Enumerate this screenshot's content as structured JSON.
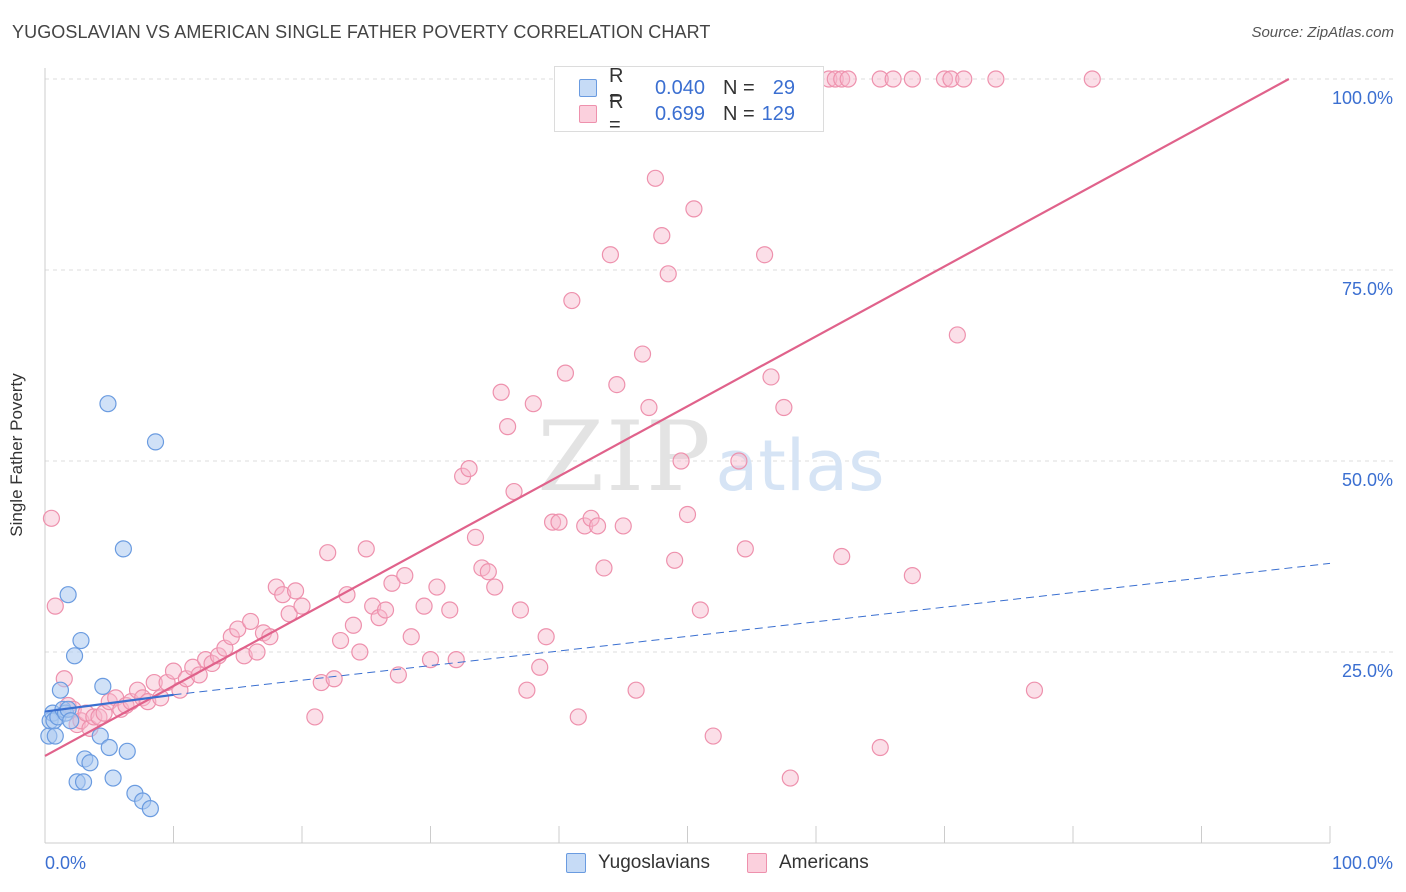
{
  "header": {
    "title": "YUGOSLAVIAN VS AMERICAN SINGLE FATHER POVERTY CORRELATION CHART",
    "source": "Source: ZipAtlas.com"
  },
  "watermark": {
    "zip": "ZIP",
    "atlas": "atlas"
  },
  "legend_top": {
    "rows": [
      {
        "r_label": "R =",
        "r_value": "0.040",
        "n_label": "N =",
        "n_value": "29"
      },
      {
        "r_label": "R =",
        "r_value": "0.699",
        "n_label": "N =",
        "n_value": "129"
      }
    ]
  },
  "legend_bottom": {
    "items": [
      "Yugoslavians",
      "Americans"
    ]
  },
  "colors": {
    "yugoslavians_fill": "#a9c8f0",
    "yugoslavians_stroke": "#6a9be0",
    "yugoslavians_line": "#3a6fd0",
    "americans_fill": "#f7b9cc",
    "americans_stroke": "#ee91ad",
    "americans_line": "#e0628b",
    "tick_label": "#3b6fd1",
    "grid": "#dddddd"
  },
  "chart_data": {
    "type": "scatter",
    "title": "YUGOSLAVIAN VS AMERICAN SINGLE FATHER POVERTY CORRELATION CHART",
    "xlabel": "",
    "ylabel": "Single Father Poverty",
    "xlim": [
      0,
      100
    ],
    "ylim": [
      0,
      100
    ],
    "x_tick_labels": [
      "0.0%",
      "100.0%"
    ],
    "y_ticks": [
      25,
      50,
      75,
      100
    ],
    "y_tick_labels": [
      "25.0%",
      "50.0%",
      "75.0%",
      "100.0%"
    ],
    "grid": true,
    "legend_position": "top-center",
    "series": [
      {
        "name": "Yugoslavians",
        "r": 0.04,
        "n": 29,
        "trend": {
          "x": [
            0,
            10
          ],
          "y": [
            17.2,
            19.4
          ]
        },
        "trend_extension": {
          "x": [
            10,
            100
          ],
          "y": [
            19.4,
            36.6
          ]
        },
        "points": [
          [
            0.3,
            14
          ],
          [
            0.4,
            16
          ],
          [
            0.6,
            17
          ],
          [
            0.7,
            16
          ],
          [
            0.8,
            14
          ],
          [
            1.0,
            16.5
          ],
          [
            1.2,
            20
          ],
          [
            1.4,
            17.5
          ],
          [
            1.6,
            17
          ],
          [
            1.8,
            17.5
          ],
          [
            2.0,
            16
          ],
          [
            2.3,
            24.5
          ],
          [
            2.5,
            8
          ],
          [
            2.8,
            26.5
          ],
          [
            3.0,
            8
          ],
          [
            3.1,
            11
          ],
          [
            3.5,
            10.5
          ],
          [
            4.3,
            14
          ],
          [
            4.5,
            20.5
          ],
          [
            5.0,
            12.5
          ],
          [
            5.3,
            8.5
          ],
          [
            6.1,
            38.5
          ],
          [
            6.4,
            12
          ],
          [
            4.9,
            57.5
          ],
          [
            7.0,
            6.5
          ],
          [
            7.6,
            5.5
          ],
          [
            8.2,
            4.5
          ],
          [
            8.6,
            52.5
          ],
          [
            1.8,
            32.5
          ]
        ]
      },
      {
        "name": "Americans",
        "r": 0.699,
        "n": 129,
        "trend": {
          "x": [
            0,
            96.8
          ],
          "y": [
            11.4,
            100
          ]
        },
        "points": [
          [
            0.5,
            42.5
          ],
          [
            0.8,
            31
          ],
          [
            1.5,
            21.5
          ],
          [
            1.8,
            18
          ],
          [
            2.2,
            17.5
          ],
          [
            2.5,
            15.5
          ],
          [
            2.8,
            16
          ],
          [
            3.2,
            17
          ],
          [
            3.5,
            15
          ],
          [
            3.8,
            16.5
          ],
          [
            4.2,
            16.5
          ],
          [
            4.6,
            17
          ],
          [
            5.0,
            18.5
          ],
          [
            5.5,
            19
          ],
          [
            5.9,
            17.5
          ],
          [
            6.3,
            18
          ],
          [
            6.7,
            18.5
          ],
          [
            7.2,
            20
          ],
          [
            7.6,
            19
          ],
          [
            8.0,
            18.5
          ],
          [
            8.5,
            21
          ],
          [
            9.0,
            19
          ],
          [
            9.5,
            21
          ],
          [
            10.0,
            22.5
          ],
          [
            10.5,
            20
          ],
          [
            11.0,
            21.5
          ],
          [
            11.5,
            23
          ],
          [
            12.0,
            22
          ],
          [
            12.5,
            24
          ],
          [
            13.0,
            23.5
          ],
          [
            13.5,
            24.5
          ],
          [
            14.0,
            25.5
          ],
          [
            14.5,
            27
          ],
          [
            15.0,
            28
          ],
          [
            15.5,
            24.5
          ],
          [
            16.0,
            29
          ],
          [
            16.5,
            25
          ],
          [
            17.0,
            27.5
          ],
          [
            17.5,
            27
          ],
          [
            18.0,
            33.5
          ],
          [
            18.5,
            32.5
          ],
          [
            19.0,
            30
          ],
          [
            19.5,
            33
          ],
          [
            20.0,
            31
          ],
          [
            21.0,
            16.5
          ],
          [
            21.5,
            21
          ],
          [
            22.0,
            38
          ],
          [
            22.5,
            21.5
          ],
          [
            23.0,
            26.5
          ],
          [
            23.5,
            32.5
          ],
          [
            24.0,
            28.5
          ],
          [
            24.5,
            25
          ],
          [
            25.0,
            38.5
          ],
          [
            25.5,
            31
          ],
          [
            26.0,
            29.5
          ],
          [
            26.5,
            30.5
          ],
          [
            27.0,
            34
          ],
          [
            27.5,
            22
          ],
          [
            28.0,
            35
          ],
          [
            28.5,
            27
          ],
          [
            29.5,
            31
          ],
          [
            30.0,
            24
          ],
          [
            30.5,
            33.5
          ],
          [
            31.5,
            30.5
          ],
          [
            32.0,
            24
          ],
          [
            32.5,
            48
          ],
          [
            33.0,
            49
          ],
          [
            33.5,
            40
          ],
          [
            34.0,
            36
          ],
          [
            34.5,
            35.5
          ],
          [
            35.0,
            33.5
          ],
          [
            35.5,
            59
          ],
          [
            36.0,
            54.5
          ],
          [
            36.5,
            46
          ],
          [
            37.0,
            30.5
          ],
          [
            37.5,
            20
          ],
          [
            38.0,
            57.5
          ],
          [
            38.5,
            23
          ],
          [
            39.0,
            27
          ],
          [
            39.5,
            42
          ],
          [
            40.0,
            42
          ],
          [
            40.5,
            61.5
          ],
          [
            41.0,
            71
          ],
          [
            41.5,
            16.5
          ],
          [
            42.0,
            41.5
          ],
          [
            42.5,
            42.5
          ],
          [
            43.0,
            41.5
          ],
          [
            43.5,
            36
          ],
          [
            44.0,
            77
          ],
          [
            44.5,
            60
          ],
          [
            45.0,
            41.5
          ],
          [
            46.0,
            20
          ],
          [
            46.5,
            64
          ],
          [
            47.0,
            57
          ],
          [
            47.5,
            87
          ],
          [
            48.0,
            79.5
          ],
          [
            48.5,
            74.5
          ],
          [
            49.0,
            37
          ],
          [
            49.5,
            50
          ],
          [
            50.0,
            43
          ],
          [
            50.5,
            83
          ],
          [
            51.0,
            30.5
          ],
          [
            52.0,
            14
          ],
          [
            54.0,
            50
          ],
          [
            54.5,
            38.5
          ],
          [
            56.0,
            77
          ],
          [
            56.5,
            61
          ],
          [
            57.5,
            57
          ],
          [
            58.0,
            8.5
          ],
          [
            62.0,
            37.5
          ],
          [
            65.0,
            12.5
          ],
          [
            67.5,
            35
          ],
          [
            71.0,
            66.5
          ],
          [
            77.0,
            20
          ],
          [
            59.5,
            100
          ],
          [
            61.0,
            100
          ],
          [
            61.5,
            100
          ],
          [
            62.0,
            100
          ],
          [
            62.5,
            100
          ],
          [
            65.0,
            100
          ],
          [
            66.0,
            100
          ],
          [
            67.5,
            100
          ],
          [
            70.0,
            100
          ],
          [
            70.5,
            100
          ],
          [
            71.5,
            100
          ],
          [
            74.0,
            100
          ],
          [
            81.5,
            100
          ]
        ]
      }
    ]
  }
}
